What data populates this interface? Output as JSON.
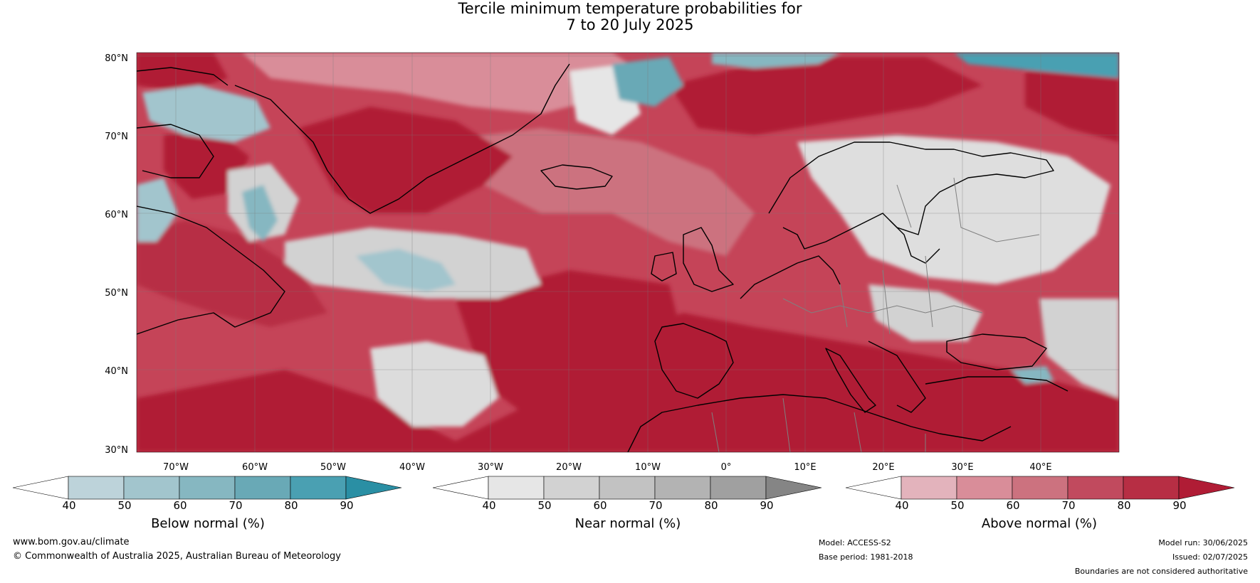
{
  "title": {
    "line1": "Tercile minimum temperature probabilities for",
    "line2": "7 to 20 July 2025"
  },
  "map": {
    "lat_labels": [
      "80°N",
      "70°N",
      "60°N",
      "50°N",
      "40°N",
      "30°N"
    ],
    "lon_labels": [
      "70°W",
      "60°W",
      "50°W",
      "40°W",
      "30°W",
      "20°W",
      "10°W",
      "0°",
      "10°E",
      "20°E",
      "30°E",
      "40°E"
    ],
    "colors": {
      "above_normal": "#b01c35",
      "near_normal": "#d4d4d4",
      "below_normal": "#5aa8b8",
      "coastline": "#000000",
      "border": "#808080"
    }
  },
  "colorbars": [
    {
      "title": "Below normal (%)",
      "ticks": [
        "40",
        "50",
        "60",
        "70",
        "80",
        "90"
      ],
      "colors": [
        "#ffffff",
        "#bdd3da",
        "#a2c5cd",
        "#86b7c1",
        "#69a9b6",
        "#4aa0b2",
        "#2a8fa4"
      ]
    },
    {
      "title": "Near normal (%)",
      "ticks": [
        "40",
        "50",
        "60",
        "70",
        "80",
        "90"
      ],
      "colors": [
        "#ffffff",
        "#e6e6e6",
        "#d2d2d2",
        "#c2c2c2",
        "#b3b3b3",
        "#a0a0a0",
        "#858585"
      ]
    },
    {
      "title": "Above normal (%)",
      "ticks": [
        "40",
        "50",
        "60",
        "70",
        "80",
        "90"
      ],
      "colors": [
        "#ffffff",
        "#e3b3bc",
        "#d98d99",
        "#cc727f",
        "#c14a5e",
        "#b72e44",
        "#b01c35"
      ]
    }
  ],
  "footer": {
    "website": "www.bom.gov.au/climate",
    "copyright": "© Commonwealth of Australia 2025, Australian Bureau of Meteorology",
    "model": "Model: ACCESS-S2",
    "base_period": "Base period: 1981-2018",
    "model_run": "Model run: 30/06/2025",
    "issued": "Issued: 02/07/2025",
    "disclaimer": "Boundaries are not considered authoritative"
  }
}
